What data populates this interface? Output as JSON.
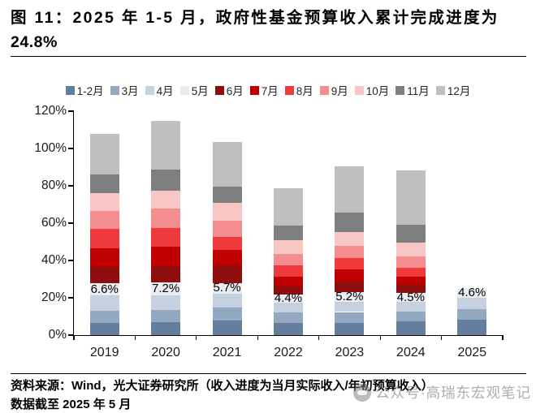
{
  "header": {
    "figure_title_line1": "图 11：2025 年 1-5 月，政府性基金预算收入累计完成进度为",
    "figure_title_line2": "24.8%"
  },
  "chart_data": {
    "type": "bar",
    "stacked": true,
    "title": "2025 年 1-5 月，政府性基金预算收入累计完成进度为 24.8%",
    "xlabel": "",
    "ylabel": "",
    "unit": "%",
    "ylim": [
      0,
      120
    ],
    "ytick_step": 20,
    "ytick_labels": [
      "0%",
      "20%",
      "40%",
      "60%",
      "80%",
      "100%",
      "120%"
    ],
    "grid": false,
    "legend_position": "top",
    "categories": [
      "2019",
      "2020",
      "2021",
      "2022",
      "2023",
      "2024",
      "2025"
    ],
    "series": [
      {
        "name": "1-2月",
        "color": "#647f9e",
        "values": [
          6.6,
          7.0,
          7.7,
          6.6,
          6.6,
          7.3,
          8.2
        ]
      },
      {
        "name": "3月",
        "color": "#93a9c1",
        "values": [
          6.6,
          6.6,
          7.3,
          5.5,
          5.8,
          5.4,
          5.6
        ]
      },
      {
        "name": "4月",
        "color": "#c5d1df",
        "values": [
          7.9,
          7.6,
          7.3,
          5.4,
          5.5,
          5.2,
          6.4
        ]
      },
      {
        "name": "5月",
        "color": "#e9edf2",
        "values": [
          6.6,
          7.2,
          5.7,
          4.4,
          5.2,
          4.5,
          4.6
        ]
      },
      {
        "name": "6月",
        "color": "#8e0e0e",
        "values": [
          8.8,
          8.7,
          9.5,
          4.4,
          5.4,
          4.4,
          0
        ]
      },
      {
        "name": "7月",
        "color": "#c00000",
        "values": [
          10.2,
          10.2,
          8.0,
          4.8,
          6.6,
          4.4,
          0
        ]
      },
      {
        "name": "8月",
        "color": "#ee3a3c",
        "values": [
          10.2,
          10.2,
          7.3,
          6.1,
          6.3,
          4.7,
          0
        ]
      },
      {
        "name": "9月",
        "color": "#f48d8d",
        "values": [
          9.5,
          10.2,
          8.4,
          6.3,
          6.6,
          6.3,
          0
        ]
      },
      {
        "name": "10月",
        "color": "#f9c6c6",
        "values": [
          9.5,
          9.9,
          9.5,
          7.3,
          7.3,
          7.3,
          0
        ]
      },
      {
        "name": "11月",
        "color": "#7f7f7f",
        "values": [
          10.2,
          10.9,
          8.7,
          8.0,
          10.2,
          9.5,
          0
        ]
      },
      {
        "name": "12月",
        "color": "#bfbfbf",
        "values": [
          21.8,
          26.2,
          24.3,
          19.7,
          24.8,
          29.1,
          0
        ]
      }
    ],
    "stack_totals": [
      107.9,
      114.7,
      103.7,
      78.5,
      90.3,
      88.1,
      24.8
    ],
    "value_label_series": "5月",
    "value_labels": [
      "6.6%",
      "7.2%",
      "5.7%",
      "4.4%",
      "5.2%",
      "4.5%",
      "4.6%"
    ]
  },
  "footer": {
    "source_line1": "资料来源：Wind，光大证券研究所（收入进度为当月实际收入/年初预算收入）",
    "source_line2": "数据截至 2025 年 5 月"
  },
  "watermark": {
    "text": "公众号·高瑞东宏观笔记",
    "icon": "wechat-account-logo-icon"
  }
}
